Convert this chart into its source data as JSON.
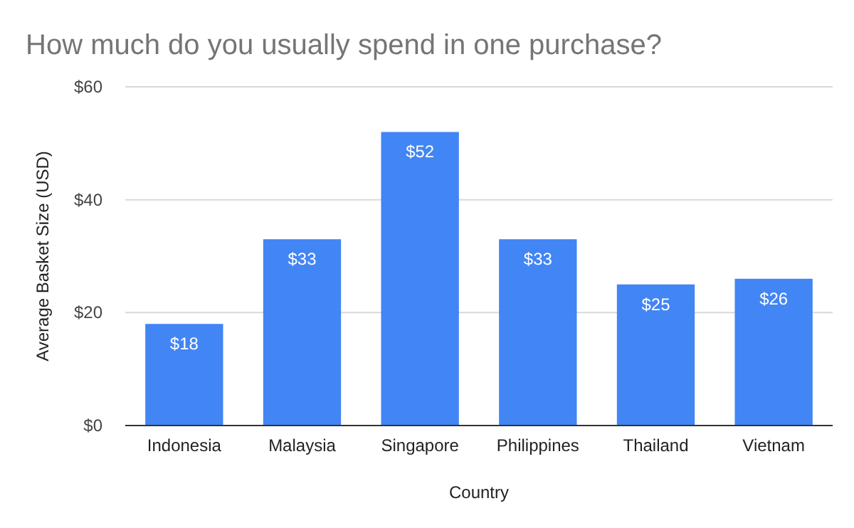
{
  "chart_data": {
    "type": "bar",
    "title": "How much do you usually spend in one purchase?",
    "xlabel": "Country",
    "ylabel": "Average Basket Size (USD)",
    "categories": [
      "Indonesia",
      "Malaysia",
      "Singapore",
      "Philippines",
      "Thailand",
      "Vietnam"
    ],
    "values": [
      18,
      33,
      52,
      33,
      25,
      26
    ],
    "value_labels": [
      "$18",
      "$33",
      "$52",
      "$33",
      "$25",
      "$26"
    ],
    "color": "#4285f4",
    "ylim": [
      0,
      60
    ],
    "yticks": [
      {
        "value": 0,
        "label": "$0"
      },
      {
        "value": 20,
        "label": "$20"
      },
      {
        "value": 40,
        "label": "$40"
      },
      {
        "value": 60,
        "label": "$60"
      }
    ],
    "grid": "y"
  }
}
